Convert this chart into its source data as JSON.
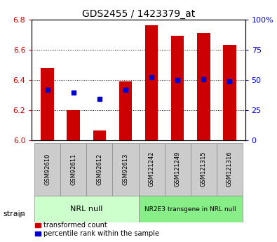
{
  "title": "GDS2455 / 1423379_at",
  "samples": [
    "GSM92610",
    "GSM92611",
    "GSM92612",
    "GSM92613",
    "GSM121242",
    "GSM121249",
    "GSM121315",
    "GSM121316"
  ],
  "bar_tops": [
    6.48,
    6.2,
    6.065,
    6.39,
    6.76,
    6.69,
    6.71,
    6.63
  ],
  "bar_base": 6.0,
  "blue_y": [
    6.335,
    6.315,
    6.275,
    6.335,
    6.42,
    6.4,
    6.405,
    6.39
  ],
  "ylim": [
    6.0,
    6.8
  ],
  "yticks_left": [
    6.0,
    6.2,
    6.4,
    6.6,
    6.8
  ],
  "yticks_right": [
    0,
    25,
    50,
    75,
    100
  ],
  "ylabel_right_labels": [
    "0",
    "25",
    "50",
    "75",
    "100%"
  ],
  "bar_color": "#cc0000",
  "blue_color": "#0000cc",
  "group1_label": "NRL null",
  "group2_label": "NR2E3 transgene in NRL null",
  "group1_indices": [
    0,
    1,
    2,
    3
  ],
  "group2_indices": [
    4,
    5,
    6,
    7
  ],
  "group_bg1": "#ccffcc",
  "group_bg2": "#88ee88",
  "tick_bg": "#cccccc",
  "strain_label": "strain",
  "legend_items": [
    "transformed count",
    "percentile rank within the sample"
  ],
  "bar_width": 0.5,
  "xlim": [
    -0.6,
    7.6
  ]
}
